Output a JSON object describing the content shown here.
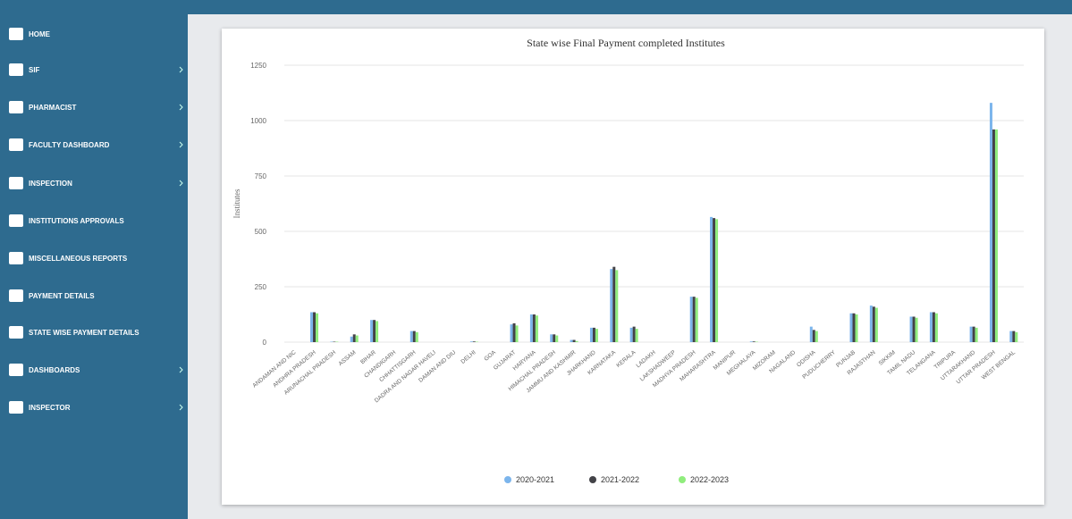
{
  "sidebar": {
    "items": [
      "HOME",
      "SIF",
      "PHARMACIST",
      "FACULTY DASHBOARD",
      "INSPECTION",
      "INSTITUTIONS APPROVALS",
      "MISCELLANEOUS REPORTS",
      "PAYMENT DETAILS",
      "STATE WISE PAYMENT DETAILS",
      "DASHBOARDS",
      "INSPECTOR"
    ]
  },
  "chart_data": {
    "type": "bar",
    "title": "State wise Final Payment completed Institutes",
    "y_label": "Institutes",
    "categories": [
      "ANDAMAN AND NIC",
      "ANDHRA PRADESH",
      "ARUNACHAL PRADESH",
      "ASSAM",
      "BIHAR",
      "CHANDIGARH",
      "CHHATTISGARH",
      "DADRA AND NAGAR HAVELI",
      "DAMAN AND DIU",
      "DELHI",
      "GOA",
      "GUJARAT",
      "HARYANA",
      "HIMACHAL PRADESH",
      "JAMMU AND KASHMIR",
      "JHARKHAND",
      "KARNATAKA",
      "KERALA",
      "LADAKH",
      "LAKSHADWEEP",
      "MADHYA PRADESH",
      "MAHARASHTRA",
      "MANIPUR",
      "MEGHALAYA",
      "MIZORAM",
      "NAGALAND",
      "ODISHA",
      "PUDUCHERRY",
      "PUNJAB",
      "RAJASTHAN",
      "SIKKIM",
      "TAMIL NADU",
      "TELANGANA",
      "TRIPURA",
      "UTTARAKHAND",
      "UTTAR PRADESH",
      "WEST BENGAL"
    ],
    "series": [
      {
        "name": "2020-2021",
        "color": "#7cb5ec",
        "values": [
          0,
          135,
          2,
          25,
          100,
          0,
          50,
          0,
          0,
          3,
          0,
          80,
          125,
          35,
          10,
          65,
          330,
          65,
          0,
          0,
          205,
          565,
          0,
          3,
          0,
          0,
          70,
          0,
          130,
          165,
          0,
          115,
          135,
          0,
          70,
          1080,
          50
        ]
      },
      {
        "name": "2021-2022",
        "color": "#434348",
        "values": [
          0,
          135,
          2,
          35,
          100,
          0,
          50,
          0,
          0,
          3,
          0,
          85,
          125,
          35,
          10,
          65,
          340,
          70,
          0,
          0,
          205,
          560,
          0,
          3,
          0,
          0,
          55,
          0,
          130,
          160,
          0,
          115,
          135,
          0,
          70,
          960,
          50
        ]
      },
      {
        "name": "2022-2023",
        "color": "#90ed7d",
        "values": [
          0,
          130,
          2,
          30,
          95,
          0,
          45,
          0,
          0,
          2,
          0,
          75,
          120,
          30,
          5,
          60,
          325,
          60,
          0,
          0,
          200,
          555,
          0,
          2,
          0,
          0,
          50,
          0,
          125,
          155,
          0,
          110,
          130,
          0,
          65,
          960,
          45
        ]
      }
    ],
    "ylim": [
      0,
      1250
    ],
    "yticks": [
      0,
      250,
      500,
      750,
      1000,
      1250
    ],
    "grid": true
  }
}
